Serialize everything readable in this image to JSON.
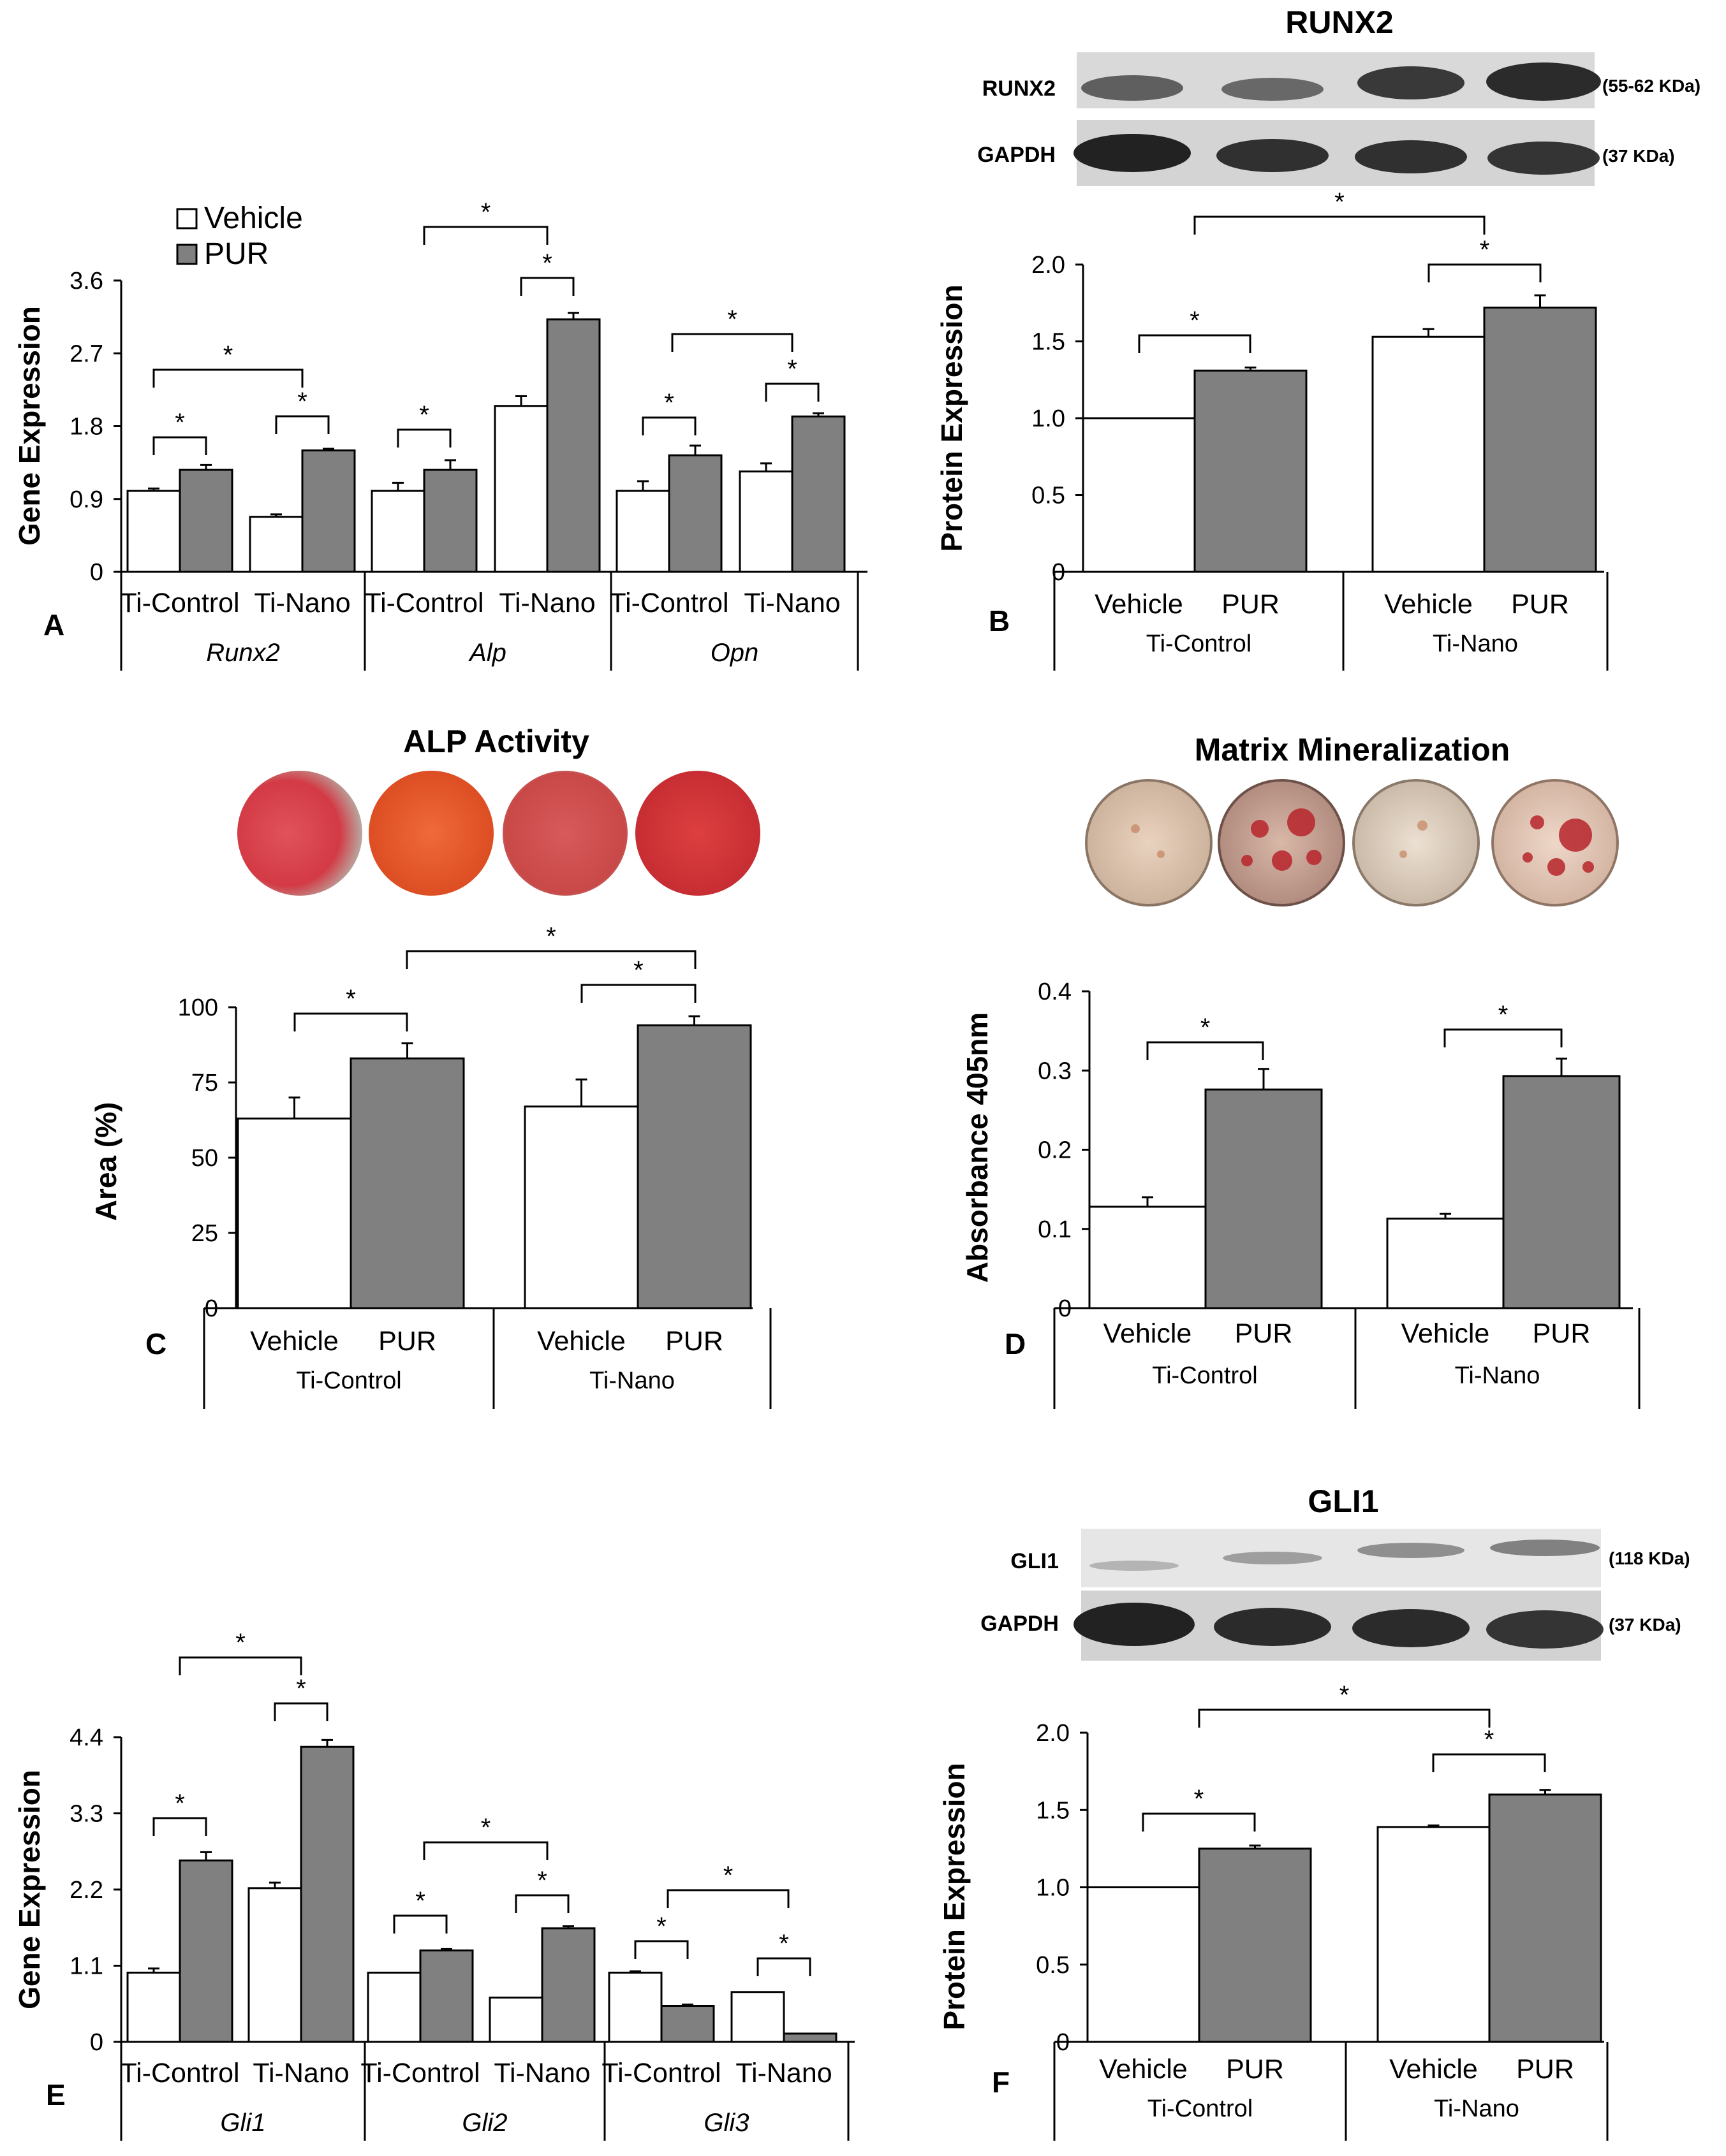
{
  "colors": {
    "vehicle": "#ffffff",
    "pur": "#808080",
    "axis": "#000000"
  },
  "legend": {
    "vehicle": "Vehicle",
    "pur": "PUR"
  },
  "chart_data": [
    {
      "panel": "A",
      "type": "bar",
      "ylabel": "Gene Expression",
      "ylim": [
        0,
        3.6
      ],
      "yticks": [
        "0",
        "0.9",
        "1.8",
        "2.7",
        "3.6"
      ],
      "genes": [
        "Runx2",
        "Alp",
        "Opn"
      ],
      "categories": [
        "Ti-Control",
        "Ti-Nano",
        "Ti-Control",
        "Ti-Nano",
        "Ti-Control",
        "Ti-Nano"
      ],
      "series": [
        {
          "name": "Vehicle",
          "values": [
            1.0,
            0.68,
            1.0,
            2.05,
            1.0,
            1.24
          ],
          "errors": [
            0.03,
            0.03,
            0.1,
            0.12,
            0.12,
            0.1
          ]
        },
        {
          "name": "PUR",
          "values": [
            1.26,
            1.5,
            1.26,
            3.12,
            1.44,
            1.92
          ],
          "errors": [
            0.06,
            0.02,
            0.12,
            0.08,
            0.12,
            0.04
          ]
        }
      ],
      "significance": [
        "*",
        "*",
        "*",
        "*",
        "*",
        "*",
        "*",
        "*",
        "*"
      ]
    },
    {
      "panel": "B",
      "type": "bar",
      "title": "RUNX2",
      "ylabel": "Protein Expression",
      "ylim": [
        0,
        2.0
      ],
      "yticks": [
        "0",
        "0.5",
        "1.0",
        "1.5",
        "2.0"
      ],
      "groups": [
        "Ti-Control",
        "Ti-Nano"
      ],
      "categories": [
        "Vehicle",
        "PUR",
        "Vehicle",
        "PUR"
      ],
      "values": [
        1.0,
        1.31,
        1.53,
        1.72
      ],
      "errors": [
        0.0,
        0.02,
        0.05,
        0.08
      ],
      "blot": [
        {
          "label": "RUNX2",
          "kda": "(55-62 KDa)"
        },
        {
          "label": "GAPDH",
          "kda": "(37 KDa)"
        }
      ],
      "significance": [
        "*",
        "*",
        "*"
      ]
    },
    {
      "panel": "C",
      "type": "bar",
      "title": "ALP Activity",
      "ylabel": "Area (%)",
      "ylim": [
        0,
        100
      ],
      "yticks": [
        "0",
        "25",
        "50",
        "75",
        "100"
      ],
      "groups": [
        "Ti-Control",
        "Ti-Nano"
      ],
      "categories": [
        "Vehicle",
        "PUR",
        "Vehicle",
        "PUR"
      ],
      "values": [
        63,
        83,
        67,
        94
      ],
      "errors": [
        7,
        5,
        9,
        3
      ],
      "significance": [
        "*",
        "*",
        "*"
      ]
    },
    {
      "panel": "D",
      "type": "bar",
      "title": "Matrix Mineralization",
      "ylabel": "Absorbance 405nm",
      "ylim": [
        0,
        0.4
      ],
      "yticks": [
        "0",
        "0.1",
        "0.2",
        "0.3",
        "0.4"
      ],
      "groups": [
        "Ti-Control",
        "Ti-Nano"
      ],
      "categories": [
        "Vehicle",
        "PUR",
        "Vehicle",
        "PUR"
      ],
      "values": [
        0.128,
        0.276,
        0.113,
        0.293
      ],
      "errors": [
        0.012,
        0.026,
        0.006,
        0.022
      ],
      "significance": [
        "*",
        "*"
      ]
    },
    {
      "panel": "E",
      "type": "bar",
      "ylabel": "Gene Expression",
      "ylim": [
        0,
        4.4
      ],
      "yticks": [
        "0",
        "1.1",
        "2.2",
        "3.3",
        "4.4"
      ],
      "genes": [
        "Gli1",
        "Gli2",
        "Gli3"
      ],
      "categories": [
        "Ti-Control",
        "Ti-Nano",
        "Ti-Control",
        "Ti-Nano",
        "Ti-Control",
        "Ti-Nano"
      ],
      "series": [
        {
          "name": "Vehicle",
          "values": [
            1.0,
            2.22,
            1.0,
            0.64,
            1.0,
            0.72
          ],
          "errors": [
            0.06,
            0.08,
            0.0,
            0.0,
            0.02,
            0.0
          ]
        },
        {
          "name": "PUR",
          "values": [
            2.62,
            4.26,
            1.32,
            1.64,
            0.52,
            0.12
          ],
          "errors": [
            0.12,
            0.1,
            0.02,
            0.03,
            0.02,
            0.0
          ]
        }
      ],
      "significance": [
        "*",
        "*",
        "*",
        "*",
        "*",
        "*",
        "*",
        "*",
        "*"
      ]
    },
    {
      "panel": "F",
      "type": "bar",
      "title": "GLI1",
      "ylabel": "Protein Expression",
      "ylim": [
        0,
        2.0
      ],
      "yticks": [
        "0",
        "0.5",
        "1.0",
        "1.5",
        "2.0"
      ],
      "groups": [
        "Ti-Control",
        "Ti-Nano"
      ],
      "categories": [
        "Vehicle",
        "PUR",
        "Vehicle",
        "PUR"
      ],
      "values": [
        1.0,
        1.25,
        1.39,
        1.6
      ],
      "errors": [
        0.0,
        0.02,
        0.01,
        0.03
      ],
      "blot": [
        {
          "label": "GLI1",
          "kda": "(118 KDa)"
        },
        {
          "label": "GAPDH",
          "kda": "(37 KDa)"
        }
      ],
      "significance": [
        "*",
        "*",
        "*"
      ]
    }
  ]
}
